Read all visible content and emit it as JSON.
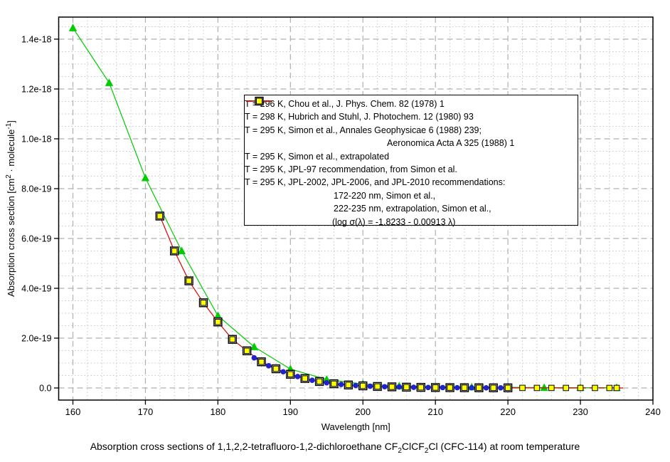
{
  "caption_parts": [
    {
      "t": "Absorption cross sections of 1,1,2,2-tetrafluoro-1,2-dichloroethane CF"
    },
    {
      "t": "2",
      "sub": true
    },
    {
      "t": "ClCF"
    },
    {
      "t": "2",
      "sub": true
    },
    {
      "t": "Cl (CFC-114) at room temperature"
    }
  ],
  "chart_data": {
    "type": "line",
    "title": "Absorption cross sections of 1,1,2,2-tetrafluoro-1,2-dichloroethane CF2ClCF2Cl (CFC-114) at room temperature",
    "xlabel": "Wavelength [nm]",
    "ylabel_parts": [
      {
        "t": "Absorption cross section [cm"
      },
      {
        "t": "2",
        "sup": true
      },
      {
        "t": " · molecule"
      },
      {
        "t": "-1",
        "sup": true
      },
      {
        "t": "]"
      }
    ],
    "xlim": [
      158,
      240
    ],
    "ylim_1e19": [
      -0.5,
      14.9
    ],
    "y_scale": 1e-19,
    "grid": {
      "major": "dashed",
      "minor": "dotted",
      "x_minor_step_nm": 2,
      "y_minor_step_1e19": 0.5
    },
    "x_major_ticks": [
      160,
      170,
      180,
      190,
      200,
      210,
      220,
      230,
      240
    ],
    "x_tick_labels": [
      "160",
      "170",
      "180",
      "190",
      "200",
      "210",
      "220",
      "230",
      "240"
    ],
    "y_major_ticks_1e19": [
      0,
      2,
      4,
      6,
      8,
      10,
      12,
      14
    ],
    "y_tick_labels": [
      "0.0",
      "2.0e-19",
      "4.0e-19",
      "6.0e-19",
      "8.0e-19",
      "1.0e-18",
      "1.2e-18",
      "1.4e-18"
    ],
    "legend_position": "upper middle",
    "series": [
      {
        "name": "hubrich-stuhl-298K",
        "color": "#00cc00",
        "line": "solid",
        "marker": "triangle",
        "x": [
          160,
          165,
          170,
          175,
          180,
          185,
          190,
          195,
          200,
          205,
          210,
          215,
          220,
          225,
          230,
          235
        ],
        "y_1e19": [
          14.45,
          12.25,
          8.43,
          5.5,
          2.9,
          1.65,
          0.76,
          0.34,
          0.16,
          0.08,
          0.05,
          0.035,
          0.025,
          0.015,
          0.012,
          0.01
        ]
      },
      {
        "name": "simon-295K-measured",
        "color": "#dd0000",
        "line": "solid",
        "marker": "vtick",
        "x": [
          172,
          174,
          176,
          178,
          180,
          182,
          184,
          186,
          188,
          190,
          192,
          194,
          196,
          198,
          200,
          202,
          204,
          206,
          208,
          210,
          212,
          214,
          216,
          218,
          220,
          222,
          224,
          226,
          228,
          230
        ],
        "y_1e19": [
          6.9,
          5.5,
          4.3,
          3.42,
          2.65,
          1.95,
          1.49,
          1.05,
          0.77,
          0.55,
          0.38,
          0.26,
          0.17,
          0.12,
          0.085,
          0.06,
          0.045,
          0.032,
          0.024,
          0.018,
          0.013,
          0.01,
          0.007,
          0.005,
          0.004,
          0.003,
          0.002,
          0.002,
          0.001,
          0.001
        ]
      },
      {
        "name": "simon-295K-extrapolated",
        "color": "#dd0000",
        "line": "dashed",
        "marker": "none",
        "x": [
          230,
          232,
          234,
          236
        ],
        "y_1e19": [
          0.001,
          0.0008,
          0.0006,
          0.0005
        ]
      },
      {
        "name": "chou-296K",
        "color": "#2222cc",
        "line": "solid",
        "marker": "circle",
        "x": [
          185,
          186,
          187,
          188,
          189,
          190,
          191,
          192,
          193,
          194,
          195,
          196,
          197,
          198,
          199,
          200,
          201,
          202,
          203,
          204,
          205,
          206,
          207,
          208,
          209,
          210,
          211,
          212,
          213,
          214,
          215,
          216,
          217,
          218,
          219,
          220
        ],
        "y_1e19": [
          1.21,
          1.03,
          0.89,
          0.76,
          0.65,
          0.55,
          0.46,
          0.38,
          0.31,
          0.26,
          0.21,
          0.17,
          0.14,
          0.12,
          0.1,
          0.085,
          0.07,
          0.06,
          0.05,
          0.045,
          0.04,
          0.032,
          0.028,
          0.024,
          0.02,
          0.018,
          0.015,
          0.013,
          0.011,
          0.01,
          0.008,
          0.007,
          0.006,
          0.005,
          0.0045,
          0.004
        ]
      },
      {
        "name": "jpl97-295K",
        "color": "#000000",
        "line": "none",
        "marker": "open-square",
        "x": [
          172,
          174,
          176,
          178,
          180,
          182,
          184,
          186,
          188,
          190,
          192,
          194,
          196,
          198,
          200,
          202,
          204,
          206,
          208,
          210,
          212,
          214,
          216,
          218,
          220
        ],
        "y_1e19": [
          6.9,
          5.5,
          4.3,
          3.42,
          2.65,
          1.95,
          1.49,
          1.05,
          0.77,
          0.55,
          0.38,
          0.26,
          0.17,
          0.12,
          0.085,
          0.06,
          0.045,
          0.032,
          0.024,
          0.018,
          0.013,
          0.01,
          0.007,
          0.005,
          0.004
        ]
      },
      {
        "name": "jpl2002-2006-2010-295K",
        "color": "#ffff00",
        "line": "none",
        "marker": "yellow-square",
        "x": [
          172,
          174,
          176,
          178,
          180,
          182,
          184,
          186,
          188,
          190,
          192,
          194,
          196,
          198,
          200,
          202,
          204,
          206,
          208,
          210,
          212,
          214,
          216,
          218,
          220,
          222,
          224,
          226,
          228,
          230,
          232,
          234,
          235
        ],
        "y_1e19": [
          6.9,
          5.5,
          4.3,
          3.42,
          2.65,
          1.95,
          1.49,
          1.05,
          0.77,
          0.55,
          0.38,
          0.26,
          0.17,
          0.12,
          0.085,
          0.06,
          0.045,
          0.032,
          0.024,
          0.018,
          0.013,
          0.01,
          0.007,
          0.005,
          0.004,
          0.003,
          0.002,
          0.002,
          0.001,
          0.001,
          0.0008,
          0.0006,
          0.0005
        ]
      }
    ],
    "legend_items": [
      {
        "marker": "line-circle",
        "color": "#2222cc",
        "lines": [
          {
            "text": "T = 296 K, Chou et al., J. Phys. Chem. 82 (1978) 1",
            "indent": 0
          }
        ]
      },
      {
        "marker": "line-triangle",
        "color": "#00cc00",
        "lines": [
          {
            "text": "T = 298 K, Hubrich and Stuhl, J. Photochem. 12 (1980) 93",
            "indent": 0
          }
        ]
      },
      {
        "marker": "line-vtick",
        "color": "#dd0000",
        "lines": [
          {
            "text": "T = 295 K, Simon et al., Annales Geophysicae 6 (1988) 239;",
            "indent": 0
          },
          {
            "text": "Aeronomica Acta A 325 (1988) 1",
            "indent": 155
          }
        ]
      },
      {
        "marker": "dashed-line",
        "color": "#dd0000",
        "lines": [
          {
            "text": "T = 295 K, Simon et al., extrapolated",
            "indent": 0
          }
        ]
      },
      {
        "marker": "open-square",
        "color": "#000000",
        "lines": [
          {
            "text": "T = 295 K, JPL-97 recommendation, from Simon et al.",
            "indent": 0
          }
        ]
      },
      {
        "marker": "yellow-square",
        "color": "#ffff00",
        "lines": [
          {
            "text": "T = 295 K, JPL-2002, JPL-2006, and JPL-2010 recommendations:",
            "indent": 0
          },
          {
            "text": "172-220 nm, Simon et al.,",
            "indent": 80
          },
          {
            "text": "222-235 nm, extrapolation, Simon et al.,",
            "indent": 80
          },
          {
            "text": "(log σ(λ) = -1.8233 - 0.00913 λ)",
            "indent": 78
          }
        ]
      }
    ]
  },
  "colors": {
    "background": "#ffffff",
    "axis": "#000000",
    "grid_major": "#b0b0b0",
    "grid_minor": "#c8c8c8",
    "chou_blue": "#2222cc",
    "hubrich_green": "#00cc00",
    "simon_red": "#dd0000",
    "jpl_yellow": "#ffff00"
  }
}
